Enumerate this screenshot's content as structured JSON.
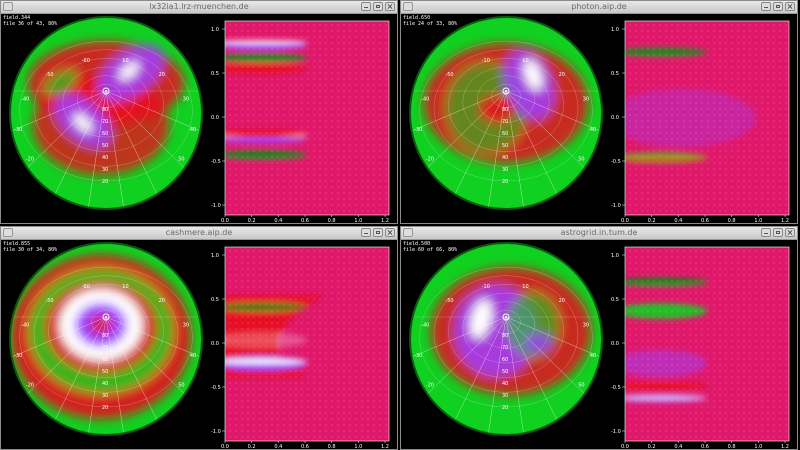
{
  "windows": [
    {
      "title": "lx32ia1.lrz-muenchen.de",
      "field_label": "field.344",
      "file_label": "file 36 of 43, 80%",
      "pattern": "spiral",
      "lat_labels": [
        "80",
        "70",
        "60",
        "50",
        "40",
        "30",
        "20"
      ],
      "lon_labels": [
        "-20",
        "-30",
        "-40",
        "-50",
        "-60",
        "10",
        "20",
        "30",
        "40",
        "50"
      ],
      "y_ticks": [
        "1.0",
        "0.5",
        "0.0",
        "-0.5",
        "-1.0"
      ],
      "x_ticks": [
        "0.0",
        "0.2",
        "0.4",
        "0.6",
        "0.8",
        "1.0",
        "1.2"
      ]
    },
    {
      "title": "photon.aip.de",
      "field_label": "field.650",
      "file_label": "file 24 of 33, 80%",
      "pattern": "yinyang",
      "lat_labels": [
        "80",
        "70",
        "60",
        "50",
        "40",
        "30",
        "20"
      ],
      "lon_labels": [
        "-20",
        "-30",
        "-40",
        "-50",
        "-10",
        "10",
        "20",
        "30",
        "40",
        "50"
      ],
      "y_ticks": [
        "1.0",
        "0.5",
        "0.0",
        "-0.5",
        "-1.0"
      ],
      "x_ticks": [
        "0.0",
        "0.2",
        "0.4",
        "0.6",
        "0.8",
        "1.0",
        "1.2"
      ]
    },
    {
      "title": "cashmere.aip.de",
      "field_label": "field.855",
      "file_label": "file 30 of 34, 80%",
      "pattern": "ring",
      "lat_labels": [
        "80",
        "70",
        "60",
        "50",
        "40",
        "30",
        "20"
      ],
      "lon_labels": [
        "-20",
        "-30",
        "-40",
        "-50",
        "-60",
        "10",
        "20",
        "30",
        "40",
        "50"
      ],
      "y_ticks": [
        "1.0",
        "0.5",
        "0.0",
        "-0.5",
        "-1.0"
      ],
      "x_ticks": [
        "0.0",
        "0.2",
        "0.4",
        "0.6",
        "0.8",
        "1.0",
        "1.2"
      ]
    },
    {
      "title": "astrogrid.in.tum.de",
      "field_label": "field.500",
      "file_label": "file 60 of 66, 80%",
      "pattern": "crescent",
      "lat_labels": [
        "80",
        "70",
        "60",
        "50",
        "40",
        "30",
        "20"
      ],
      "lon_labels": [
        "-20",
        "-30",
        "-40",
        "-50",
        "-10",
        "10",
        "20",
        "30",
        "40",
        "50"
      ],
      "y_ticks": [
        "1.0",
        "0.5",
        "0.0",
        "-0.5",
        "-1.0"
      ],
      "x_ticks": [
        "0.0",
        "0.2",
        "0.4",
        "0.6",
        "0.8",
        "1.0",
        "1.2"
      ]
    }
  ],
  "colors": {
    "background": "#000000",
    "plot_background": "#e0186a",
    "green": "#10d020",
    "red": "#e8101c",
    "violet": "#a040ff",
    "white": "#ffffff"
  }
}
